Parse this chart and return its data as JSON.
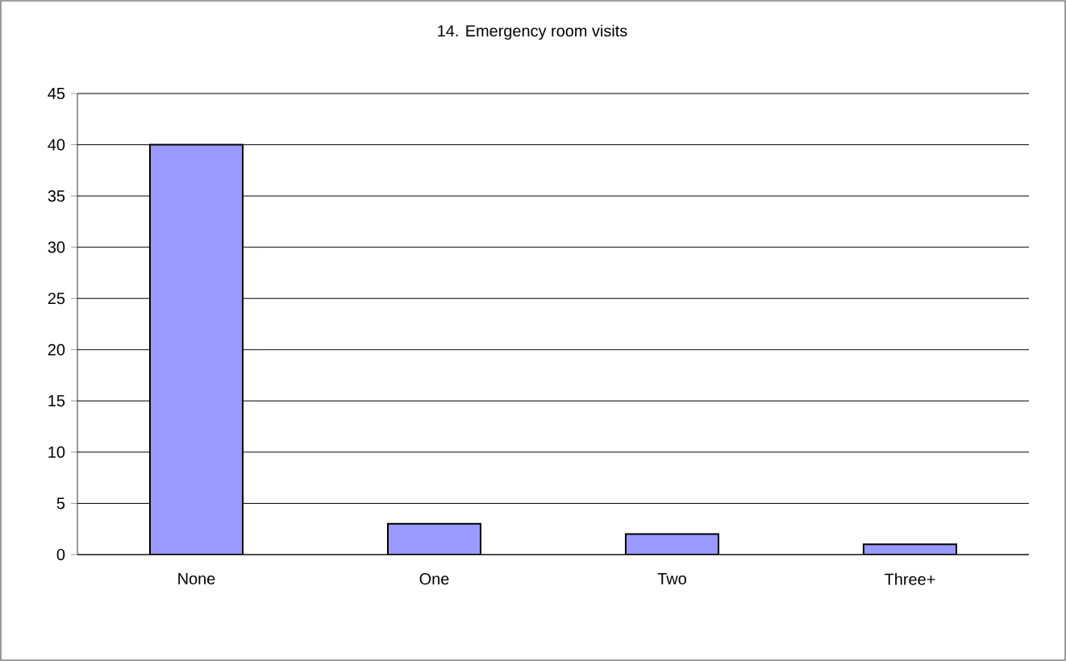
{
  "chart_data": {
    "type": "bar",
    "title": "14. Emergency room visits",
    "categories": [
      "None",
      "One",
      "Two",
      "Three+"
    ],
    "values": [
      40,
      3,
      2,
      1
    ],
    "color": "#9999ff",
    "ylim": [
      0,
      45
    ],
    "yticks": [
      0,
      5,
      10,
      15,
      20,
      25,
      30,
      35,
      40,
      45
    ],
    "grid": "y"
  }
}
